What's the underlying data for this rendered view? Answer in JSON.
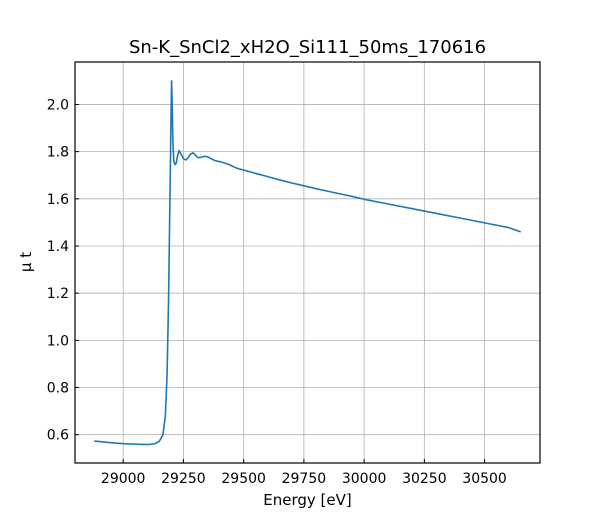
{
  "chart_data": {
    "type": "line",
    "title": "Sn-K_SnCl2_xH2O_Si111_50ms_170616",
    "xlabel": "Energy [eV]",
    "ylabel": "μ t",
    "xlim": [
      28800,
      30730
    ],
    "ylim": [
      0.48,
      2.18
    ],
    "grid": true,
    "xticks": [
      29000,
      29250,
      29500,
      29750,
      30000,
      30250,
      30500
    ],
    "yticks": [
      0.6,
      0.8,
      1.0,
      1.2,
      1.4,
      1.6,
      1.8,
      2.0
    ],
    "xtick_labels": [
      "29000",
      "29250",
      "29500",
      "29750",
      "30000",
      "30250",
      "30500"
    ],
    "ytick_labels": [
      "0.6",
      "0.8",
      "1.0",
      "1.2",
      "1.4",
      "1.6",
      "1.8",
      "2.0"
    ],
    "color": "#1f77b4",
    "series": [
      {
        "x": [
          28880,
          28950,
          29000,
          29050,
          29100,
          29130,
          29150,
          29165,
          29175,
          29182,
          29188,
          29192,
          29196,
          29199,
          29201,
          29203,
          29206,
          29210,
          29215,
          29220,
          29225,
          29232,
          29240,
          29250,
          29260,
          29270,
          29280,
          29290,
          29300,
          29310,
          29320,
          29335,
          29350,
          29365,
          29380,
          29400,
          29420,
          29440,
          29460,
          29480,
          29500,
          29530,
          29560,
          29600,
          29650,
          29700,
          29750,
          29800,
          29850,
          29900,
          29950,
          30000,
          30100,
          30200,
          30300,
          30400,
          30500,
          30600,
          30650
        ],
        "y": [
          0.573,
          0.566,
          0.562,
          0.56,
          0.558,
          0.561,
          0.572,
          0.6,
          0.68,
          0.85,
          1.15,
          1.45,
          1.75,
          1.98,
          2.1,
          2.02,
          1.85,
          1.76,
          1.745,
          1.75,
          1.78,
          1.805,
          1.79,
          1.77,
          1.765,
          1.775,
          1.79,
          1.795,
          1.785,
          1.775,
          1.775,
          1.78,
          1.778,
          1.77,
          1.762,
          1.758,
          1.752,
          1.745,
          1.735,
          1.727,
          1.722,
          1.713,
          1.705,
          1.694,
          1.68,
          1.667,
          1.655,
          1.643,
          1.632,
          1.621,
          1.61,
          1.598,
          1.578,
          1.558,
          1.538,
          1.518,
          1.498,
          1.478,
          1.46
        ]
      }
    ]
  }
}
